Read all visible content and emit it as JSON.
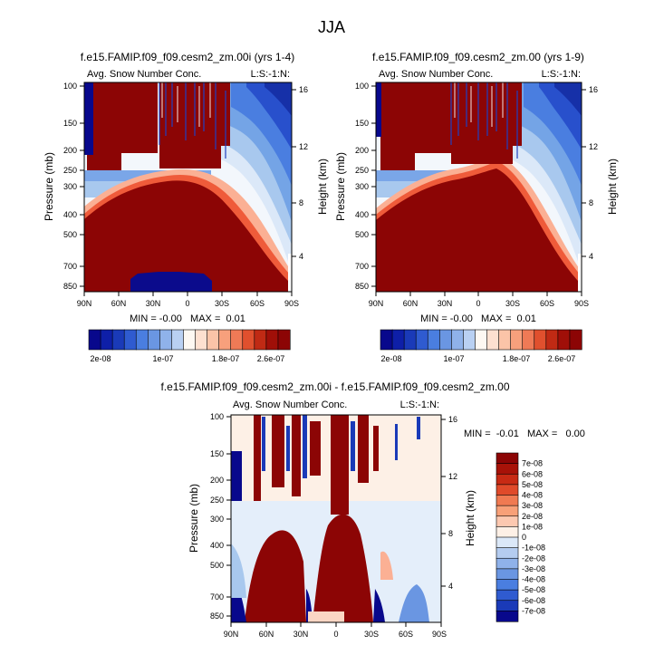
{
  "figure": {
    "title": "JJA",
    "colors": {
      "dark_blue": "#08088c",
      "white": "#fdf8f2",
      "dark_red": "#8c0505"
    }
  },
  "chart_data": [
    {
      "type": "heatmap",
      "panel": "top-left",
      "title": "f.e15.FAMIP.f09_f09.cesm2_zm.00i (yrs 1-4)",
      "left_label": "Avg. Snow Number Conc.",
      "right_label": "L:S:-1:N:",
      "ylabel": "Pressure (mb)",
      "ylabel_right": "Height (km)",
      "x_ticks": [
        "90N",
        "60N",
        "30N",
        "0",
        "30S",
        "60S",
        "90S"
      ],
      "y_ticks": [
        "100",
        "150",
        "200",
        "250",
        "300",
        "400",
        "500",
        "700",
        "850"
      ],
      "y_right_ticks": [
        "16",
        "12",
        "8",
        "4"
      ],
      "stats": "MIN = -0.00   MAX =  0.01",
      "colorbar_labels": [
        "2e-08",
        "1e-07",
        "1.8e-07",
        "2.6e-07"
      ],
      "colorbar_orientation": "horizontal"
    },
    {
      "type": "heatmap",
      "panel": "top-right",
      "title": "f.e15.FAMIP.f09_f09.cesm2_zm.00 (yrs 1-9)",
      "left_label": "Avg. Snow Number Conc.",
      "right_label": "L:S:-1:N:",
      "ylabel": "Pressure (mb)",
      "ylabel_right": "Height (km)",
      "x_ticks": [
        "90N",
        "60N",
        "30N",
        "0",
        "30S",
        "60S",
        "90S"
      ],
      "y_ticks": [
        "100",
        "150",
        "200",
        "250",
        "300",
        "400",
        "500",
        "700",
        "850"
      ],
      "y_right_ticks": [
        "16",
        "12",
        "8",
        "4"
      ],
      "stats": "MIN = -0.00   MAX =  0.01",
      "colorbar_labels": [
        "2e-08",
        "1e-07",
        "1.8e-07",
        "2.6e-07"
      ],
      "colorbar_orientation": "horizontal"
    },
    {
      "type": "heatmap",
      "panel": "bottom",
      "title": "f.e15.FAMIP.f09_f09.cesm2_zm.00i - f.e15.FAMIP.f09_f09.cesm2_zm.00",
      "left_label": "Avg. Snow Number Conc.",
      "right_label": "L:S:-1:N:",
      "ylabel": "Pressure (mb)",
      "ylabel_right": "Height (km)",
      "x_ticks": [
        "90N",
        "60N",
        "30N",
        "0",
        "30S",
        "60S",
        "90S"
      ],
      "y_ticks": [
        "100",
        "150",
        "200",
        "250",
        "300",
        "400",
        "500",
        "700",
        "850"
      ],
      "y_right_ticks": [
        "16",
        "12",
        "8",
        "4"
      ],
      "stats": "MIN =  -0.01   MAX =   0.00",
      "colorbar_labels": [
        "7e-08",
        "6e-08",
        "5e-08",
        "4e-08",
        "3e-08",
        "2e-08",
        "1e-08",
        "0",
        "-1e-08",
        "-2e-08",
        "-3e-08",
        "-4e-08",
        "-5e-08",
        "-6e-08",
        "-7e-08"
      ],
      "colorbar_orientation": "vertical"
    }
  ]
}
